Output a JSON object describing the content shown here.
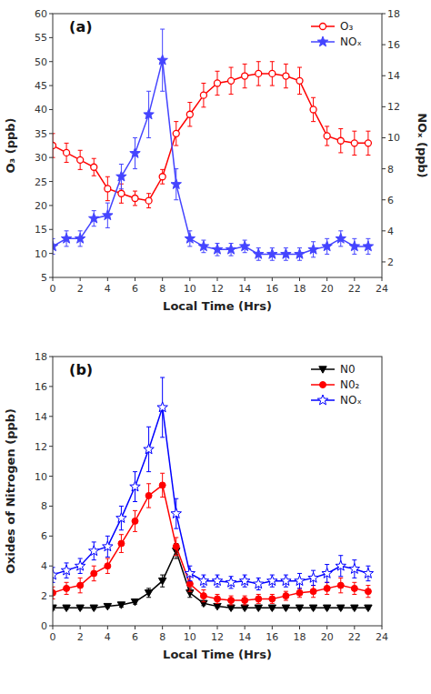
{
  "chart_data": [
    {
      "type": "line",
      "annotations": [
        "(a)"
      ],
      "x_label": "Local Time (Hrs)",
      "y_label": "O₃ (ppb)",
      "y2_label": "NOₓ (ppb)",
      "x": [
        0,
        1,
        2,
        3,
        4,
        5,
        6,
        7,
        8,
        9,
        10,
        11,
        12,
        13,
        14,
        15,
        16,
        17,
        18,
        19,
        20,
        21,
        22,
        23
      ],
      "series": [
        {
          "name": "O₃",
          "color": "#FF0000",
          "marker": "circle-open",
          "values": [
            32.5,
            31.0,
            29.5,
            28.0,
            23.5,
            22.5,
            21.5,
            21.0,
            26.0,
            35.0,
            39.0,
            43.0,
            45.5,
            46.0,
            47.0,
            47.5,
            47.5,
            47.0,
            46.0,
            40.0,
            34.5,
            33.5,
            33.0,
            33.0
          ],
          "errors": [
            2.5,
            2.0,
            2.0,
            1.8,
            2.5,
            2.0,
            1.5,
            1.5,
            1.5,
            2.5,
            2.5,
            2.5,
            2.5,
            2.8,
            2.5,
            2.5,
            2.5,
            2.5,
            2.8,
            2.5,
            2.0,
            2.5,
            2.5,
            2.5
          ]
        },
        {
          "name": "NOₓ",
          "color": "#4444FF",
          "marker": "star",
          "axis": "y2",
          "values": [
            3.0,
            3.5,
            3.5,
            4.8,
            5.0,
            7.5,
            9.0,
            11.5,
            15.0,
            7.0,
            3.5,
            3.0,
            2.8,
            2.8,
            3.0,
            2.5,
            2.5,
            2.5,
            2.5,
            2.8,
            3.0,
            3.5,
            3.0,
            3.0
          ],
          "errors": [
            0.5,
            0.5,
            0.5,
            0.5,
            0.8,
            0.8,
            1.0,
            1.5,
            2.0,
            1.0,
            0.5,
            0.4,
            0.4,
            0.4,
            0.4,
            0.4,
            0.4,
            0.4,
            0.4,
            0.5,
            0.5,
            0.5,
            0.5,
            0.5
          ]
        }
      ],
      "xlim": [
        0,
        24
      ],
      "xticks": [
        0,
        2,
        4,
        6,
        8,
        10,
        12,
        14,
        16,
        18,
        20,
        22,
        24
      ],
      "ylim": [
        5,
        60
      ],
      "yticks": [
        5,
        10,
        15,
        20,
        25,
        30,
        35,
        40,
        45,
        50,
        55,
        60
      ],
      "y2lim": [
        1,
        18
      ],
      "y2ticks": [
        2,
        4,
        6,
        8,
        10,
        12,
        14,
        16,
        18
      ],
      "grid": false,
      "legend": "upper-right"
    },
    {
      "type": "line",
      "annotations": [
        "(b)"
      ],
      "x_label": "Local Time (Hrs)",
      "y_label": "Oxides of Nitrogen (ppb)",
      "x": [
        0,
        1,
        2,
        3,
        4,
        5,
        6,
        7,
        8,
        9,
        10,
        11,
        12,
        13,
        14,
        15,
        16,
        17,
        18,
        19,
        20,
        21,
        22,
        23
      ],
      "series": [
        {
          "name": "N0",
          "color": "#000000",
          "marker": "triangle-down",
          "values": [
            1.2,
            1.2,
            1.2,
            1.2,
            1.3,
            1.4,
            1.6,
            2.2,
            3.0,
            5.0,
            2.2,
            1.5,
            1.3,
            1.2,
            1.2,
            1.2,
            1.2,
            1.2,
            1.2,
            1.2,
            1.2,
            1.2,
            1.2,
            1.2
          ],
          "errors": [
            0.15,
            0.1,
            0.1,
            0.1,
            0.1,
            0.15,
            0.15,
            0.3,
            0.4,
            0.5,
            0.3,
            0.15,
            0.1,
            0.1,
            0.1,
            0.1,
            0.1,
            0.1,
            0.1,
            0.1,
            0.1,
            0.1,
            0.1,
            0.1
          ]
        },
        {
          "name": "N0₂",
          "color": "#FF0000",
          "marker": "circle",
          "values": [
            2.2,
            2.5,
            2.7,
            3.5,
            4.0,
            5.5,
            7.0,
            8.7,
            9.4,
            5.3,
            2.8,
            2.0,
            1.8,
            1.7,
            1.7,
            1.8,
            1.8,
            2.0,
            2.2,
            2.3,
            2.5,
            2.7,
            2.5,
            2.3
          ],
          "errors": [
            0.4,
            0.4,
            0.5,
            0.5,
            0.5,
            0.6,
            0.7,
            0.8,
            0.8,
            0.6,
            0.5,
            0.4,
            0.3,
            0.3,
            0.3,
            0.3,
            0.3,
            0.3,
            0.3,
            0.4,
            0.4,
            0.5,
            0.4,
            0.4
          ]
        },
        {
          "name": "NOₓ",
          "color": "#0000FF",
          "marker": "star-open",
          "values": [
            3.4,
            3.7,
            4.0,
            5.0,
            5.3,
            7.2,
            9.3,
            11.8,
            14.6,
            7.5,
            3.5,
            3.0,
            3.0,
            2.9,
            3.0,
            2.8,
            3.0,
            3.0,
            3.0,
            3.2,
            3.5,
            4.0,
            3.8,
            3.5
          ],
          "errors": [
            0.5,
            0.5,
            0.5,
            0.6,
            0.7,
            0.8,
            1.0,
            1.5,
            2.0,
            1.0,
            0.5,
            0.4,
            0.4,
            0.4,
            0.4,
            0.4,
            0.4,
            0.4,
            0.5,
            0.5,
            0.6,
            0.7,
            0.6,
            0.5
          ]
        }
      ],
      "xlim": [
        0,
        24
      ],
      "xticks": [
        0,
        2,
        4,
        6,
        8,
        10,
        12,
        14,
        16,
        18,
        20,
        22,
        24
      ],
      "ylim": [
        0,
        18
      ],
      "yticks": [
        0,
        2,
        4,
        6,
        8,
        10,
        12,
        14,
        16,
        18
      ],
      "grid": false,
      "legend": "upper-right"
    }
  ]
}
